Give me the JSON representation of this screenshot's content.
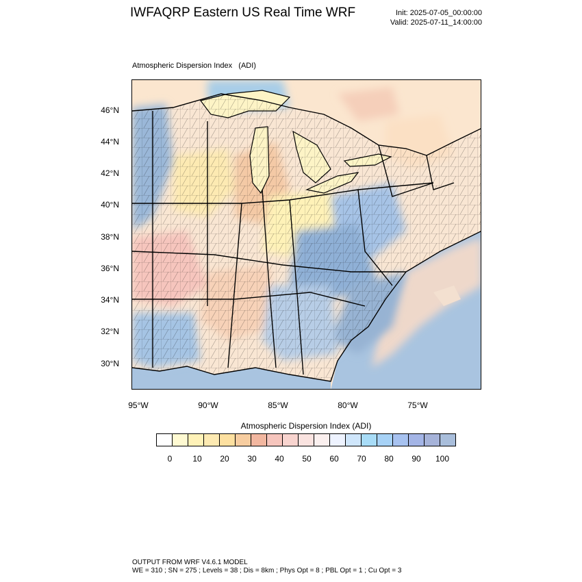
{
  "header": {
    "title": "IWFAQRP Eastern US Real Time WRF",
    "init": "Init: 2025-07-05_00:00:00",
    "valid": "Valid: 2025-07-11_14:00:00"
  },
  "plot": {
    "label": "Atmospheric Dispersion Index   (ADI)"
  },
  "axes": {
    "lat_ticks": [
      "46°N",
      "44°N",
      "42°N",
      "40°N",
      "38°N",
      "36°N",
      "34°N",
      "32°N",
      "30°N"
    ],
    "lon_ticks": [
      "95°W",
      "90°W",
      "85°W",
      "80°W",
      "75°W"
    ]
  },
  "colorbar": {
    "title": "Atmospheric Dispersion Index  (ADI)",
    "colors": [
      "#ffffff",
      "#fffad2",
      "#fff2b8",
      "#fdeab2",
      "#fde0a0",
      "#f7cda0",
      "#f2b7a0",
      "#f6c5bd",
      "#f8d4cf",
      "#fae3e0",
      "#fbf0ef",
      "#eef3ff",
      "#cfe6fb",
      "#a8dcf7",
      "#a7d2f6",
      "#a7c2f0",
      "#a4b5e6",
      "#a6b3d9",
      "#a9bedb"
    ],
    "tick_labels": [
      "0",
      "10",
      "20",
      "30",
      "40",
      "50",
      "60",
      "70",
      "80",
      "90",
      "100"
    ]
  },
  "footer": {
    "line1": "OUTPUT FROM WRF V4.6.1 MODEL",
    "line2": "WE = 310 ; SN = 275 ; Levels = 38 ; Dis = 8km ; Phys Opt = 8 ; PBL Opt = 1 ; Cu Opt = 3"
  }
}
